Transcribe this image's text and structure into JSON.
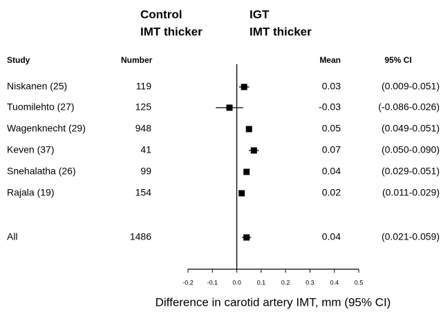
{
  "chart_data": {
    "type": "forest",
    "header_left": [
      "Control",
      "IMT thicker"
    ],
    "header_right": [
      "IGT",
      "IMT thicker"
    ],
    "columns": {
      "study": "Study",
      "number": "Number",
      "mean": "Mean",
      "ci": "95% CI"
    },
    "studies": [
      "Niskanen (25)",
      "Tuomilehto (27)",
      "Wagenknecht (29)",
      "Keven (37)",
      "Snehalatha (26)",
      "Rajala (19)",
      "All"
    ],
    "numbers": [
      119,
      125,
      948,
      41,
      99,
      154,
      1486
    ],
    "means": [
      0.03,
      -0.03,
      0.05,
      0.07,
      0.04,
      0.02,
      0.04
    ],
    "ci_low": [
      0.009,
      -0.086,
      0.049,
      0.05,
      0.029,
      0.011,
      0.021
    ],
    "ci_high": [
      0.051,
      0.026,
      0.051,
      0.09,
      0.051,
      0.029,
      0.059
    ],
    "ci_labels": [
      "(0.009-0.051)",
      "(-0.086-0.026)",
      "(0.049-0.051)",
      "(0.050-0.090)",
      "(0.029-0.051)",
      "(0.011-0.029)",
      "(0.021-0.059)"
    ],
    "xlabel": "Difference in carotid artery IMT, mm (95% CI)",
    "xlim": [
      -0.2,
      0.5
    ],
    "xticks": [
      -0.2,
      -0.1,
      {
        "value": 0,
        "label": "0.0"
      },
      0.1,
      0.2,
      0.3,
      0.4,
      0.5
    ],
    "color": "#000000"
  }
}
